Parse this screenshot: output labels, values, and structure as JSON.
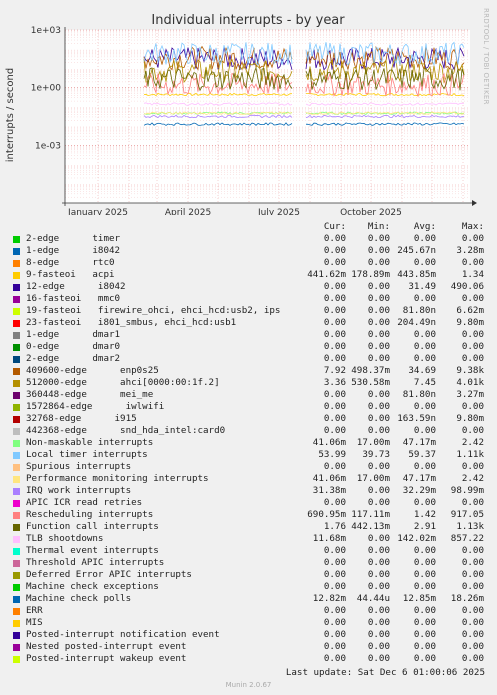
{
  "chart_data": {
    "type": "line",
    "title": "Individual interrupts - by year",
    "ylabel": "interrupts / second",
    "yscale": "log",
    "ylim": [
      1e-06,
      1000
    ],
    "yticks": [
      "1e+03",
      "1e+00",
      "1e-03"
    ],
    "xticks": [
      "January 2025",
      "April 2025",
      "July 2025",
      "October 2025"
    ],
    "grid": true,
    "side_label": "RRDTOOL / TOBI OETIKER",
    "columns": [
      "Cur:",
      "Min:",
      "Avg:",
      "Max:"
    ],
    "series": [
      {
        "name": "2-edge      timer",
        "color": "#00cc00",
        "cur": "0.00",
        "min": "0.00",
        "avg": "0.00",
        "max": "0.00"
      },
      {
        "name": "1-edge      i8042",
        "color": "#0066b3",
        "cur": "0.00",
        "min": "0.00",
        "avg": "245.67n",
        "max": "3.28m"
      },
      {
        "name": "8-edge      rtc0",
        "color": "#ff8000",
        "cur": "0.00",
        "min": "0.00",
        "avg": "0.00",
        "max": "0.00"
      },
      {
        "name": "9-fasteoi   acpi",
        "color": "#ffcc00",
        "cur": "441.62m",
        "min": "178.89m",
        "avg": "443.85m",
        "max": "1.34"
      },
      {
        "name": "12-edge      i8042",
        "color": "#330099",
        "cur": "0.00",
        "min": "0.00",
        "avg": "31.49",
        "max": "490.06"
      },
      {
        "name": "16-fasteoi   mmc0",
        "color": "#990099",
        "cur": "0.00",
        "min": "0.00",
        "avg": "0.00",
        "max": "0.00"
      },
      {
        "name": "19-fasteoi   firewire_ohci, ehci_hcd:usb2, ips",
        "color": "#ccff00",
        "cur": "0.00",
        "min": "0.00",
        "avg": "81.80n",
        "max": "6.62m"
      },
      {
        "name": "23-fasteoi   i801_smbus, ehci_hcd:usb1",
        "color": "#ff0000",
        "cur": "0.00",
        "min": "0.00",
        "avg": "204.49n",
        "max": "9.80m"
      },
      {
        "name": "1-edge      dmar1",
        "color": "#808080",
        "cur": "0.00",
        "min": "0.00",
        "avg": "0.00",
        "max": "0.00"
      },
      {
        "name": "0-edge      dmar0",
        "color": "#008f00",
        "cur": "0.00",
        "min": "0.00",
        "avg": "0.00",
        "max": "0.00"
      },
      {
        "name": "2-edge      dmar2",
        "color": "#00487d",
        "cur": "0.00",
        "min": "0.00",
        "avg": "0.00",
        "max": "0.00"
      },
      {
        "name": "409600-edge      enp0s25",
        "color": "#b35a00",
        "cur": "7.92",
        "min": "498.37m",
        "avg": "34.69",
        "max": "9.38k"
      },
      {
        "name": "512000-edge      ahci[0000:00:1f.2]",
        "color": "#b38f00",
        "cur": "3.36",
        "min": "530.58m",
        "avg": "7.45",
        "max": "4.01k"
      },
      {
        "name": "360448-edge      mei_me",
        "color": "#6b006b",
        "cur": "0.00",
        "min": "0.00",
        "avg": "81.80n",
        "max": "3.27m"
      },
      {
        "name": "1572864-edge      iwlwifi",
        "color": "#8fb300",
        "cur": "0.00",
        "min": "0.00",
        "avg": "0.00",
        "max": "0.00"
      },
      {
        "name": "32768-edge      i915",
        "color": "#b30000",
        "cur": "0.00",
        "min": "0.00",
        "avg": "163.59n",
        "max": "9.80m"
      },
      {
        "name": "442368-edge      snd_hda_intel:card0",
        "color": "#bebebe",
        "cur": "0.00",
        "min": "0.00",
        "avg": "0.00",
        "max": "0.00"
      },
      {
        "name": "Non-maskable interrupts",
        "color": "#80ff80",
        "cur": "41.06m",
        "min": "17.00m",
        "avg": "47.17m",
        "max": "2.42"
      },
      {
        "name": "Local timer interrupts",
        "color": "#80c9ff",
        "cur": "53.99",
        "min": "39.73",
        "avg": "59.37",
        "max": "1.11k"
      },
      {
        "name": "Spurious interrupts",
        "color": "#ffc080",
        "cur": "0.00",
        "min": "0.00",
        "avg": "0.00",
        "max": "0.00"
      },
      {
        "name": "Performance monitoring interrupts",
        "color": "#ffe680",
        "cur": "41.06m",
        "min": "17.00m",
        "avg": "47.17m",
        "max": "2.42"
      },
      {
        "name": "IRQ work interrupts",
        "color": "#aa80ff",
        "cur": "31.38m",
        "min": "0.00",
        "avg": "32.29m",
        "max": "98.99m"
      },
      {
        "name": "APIC ICR read retries",
        "color": "#ee00cc",
        "cur": "0.00",
        "min": "0.00",
        "avg": "0.00",
        "max": "0.00"
      },
      {
        "name": "Rescheduling interrupts",
        "color": "#ff8080",
        "cur": "690.95m",
        "min": "117.11m",
        "avg": "1.42",
        "max": "917.05"
      },
      {
        "name": "Function call interrupts",
        "color": "#666600",
        "cur": "1.76",
        "min": "442.13m",
        "avg": "2.91",
        "max": "1.13k"
      },
      {
        "name": "TLB shootdowns",
        "color": "#ffbfff",
        "cur": "11.68m",
        "min": "0.00",
        "avg": "142.02m",
        "max": "857.22"
      },
      {
        "name": "Thermal event interrupts",
        "color": "#00ffcc",
        "cur": "0.00",
        "min": "0.00",
        "avg": "0.00",
        "max": "0.00"
      },
      {
        "name": "Threshold APIC interrupts",
        "color": "#cc6699",
        "cur": "0.00",
        "min": "0.00",
        "avg": "0.00",
        "max": "0.00"
      },
      {
        "name": "Deferred Error APIC interrupts",
        "color": "#999900",
        "cur": "0.00",
        "min": "0.00",
        "avg": "0.00",
        "max": "0.00"
      },
      {
        "name": "Machine check exceptions",
        "color": "#00cc00",
        "cur": "0.00",
        "min": "0.00",
        "avg": "0.00",
        "max": "0.00"
      },
      {
        "name": "Machine check polls",
        "color": "#0066b3",
        "cur": "12.82m",
        "min": "44.44u",
        "avg": "12.85m",
        "max": "18.26m"
      },
      {
        "name": "ERR",
        "color": "#ff8000",
        "cur": "0.00",
        "min": "0.00",
        "avg": "0.00",
        "max": "0.00"
      },
      {
        "name": "MIS",
        "color": "#ffcc00",
        "cur": "0.00",
        "min": "0.00",
        "avg": "0.00",
        "max": "0.00"
      },
      {
        "name": "Posted-interrupt notification event",
        "color": "#330099",
        "cur": "0.00",
        "min": "0.00",
        "avg": "0.00",
        "max": "0.00"
      },
      {
        "name": "Nested posted-interrupt event",
        "color": "#990099",
        "cur": "0.00",
        "min": "0.00",
        "avg": "0.00",
        "max": "0.00"
      },
      {
        "name": "Posted-interrupt wakeup event",
        "color": "#ccff00",
        "cur": "0.00",
        "min": "0.00",
        "avg": "0.00",
        "max": "0.00"
      }
    ]
  },
  "footer": {
    "last_update": "Last update: Sat Dec  6 01:00:06 2025",
    "generator": "Munin 2.0.67"
  }
}
